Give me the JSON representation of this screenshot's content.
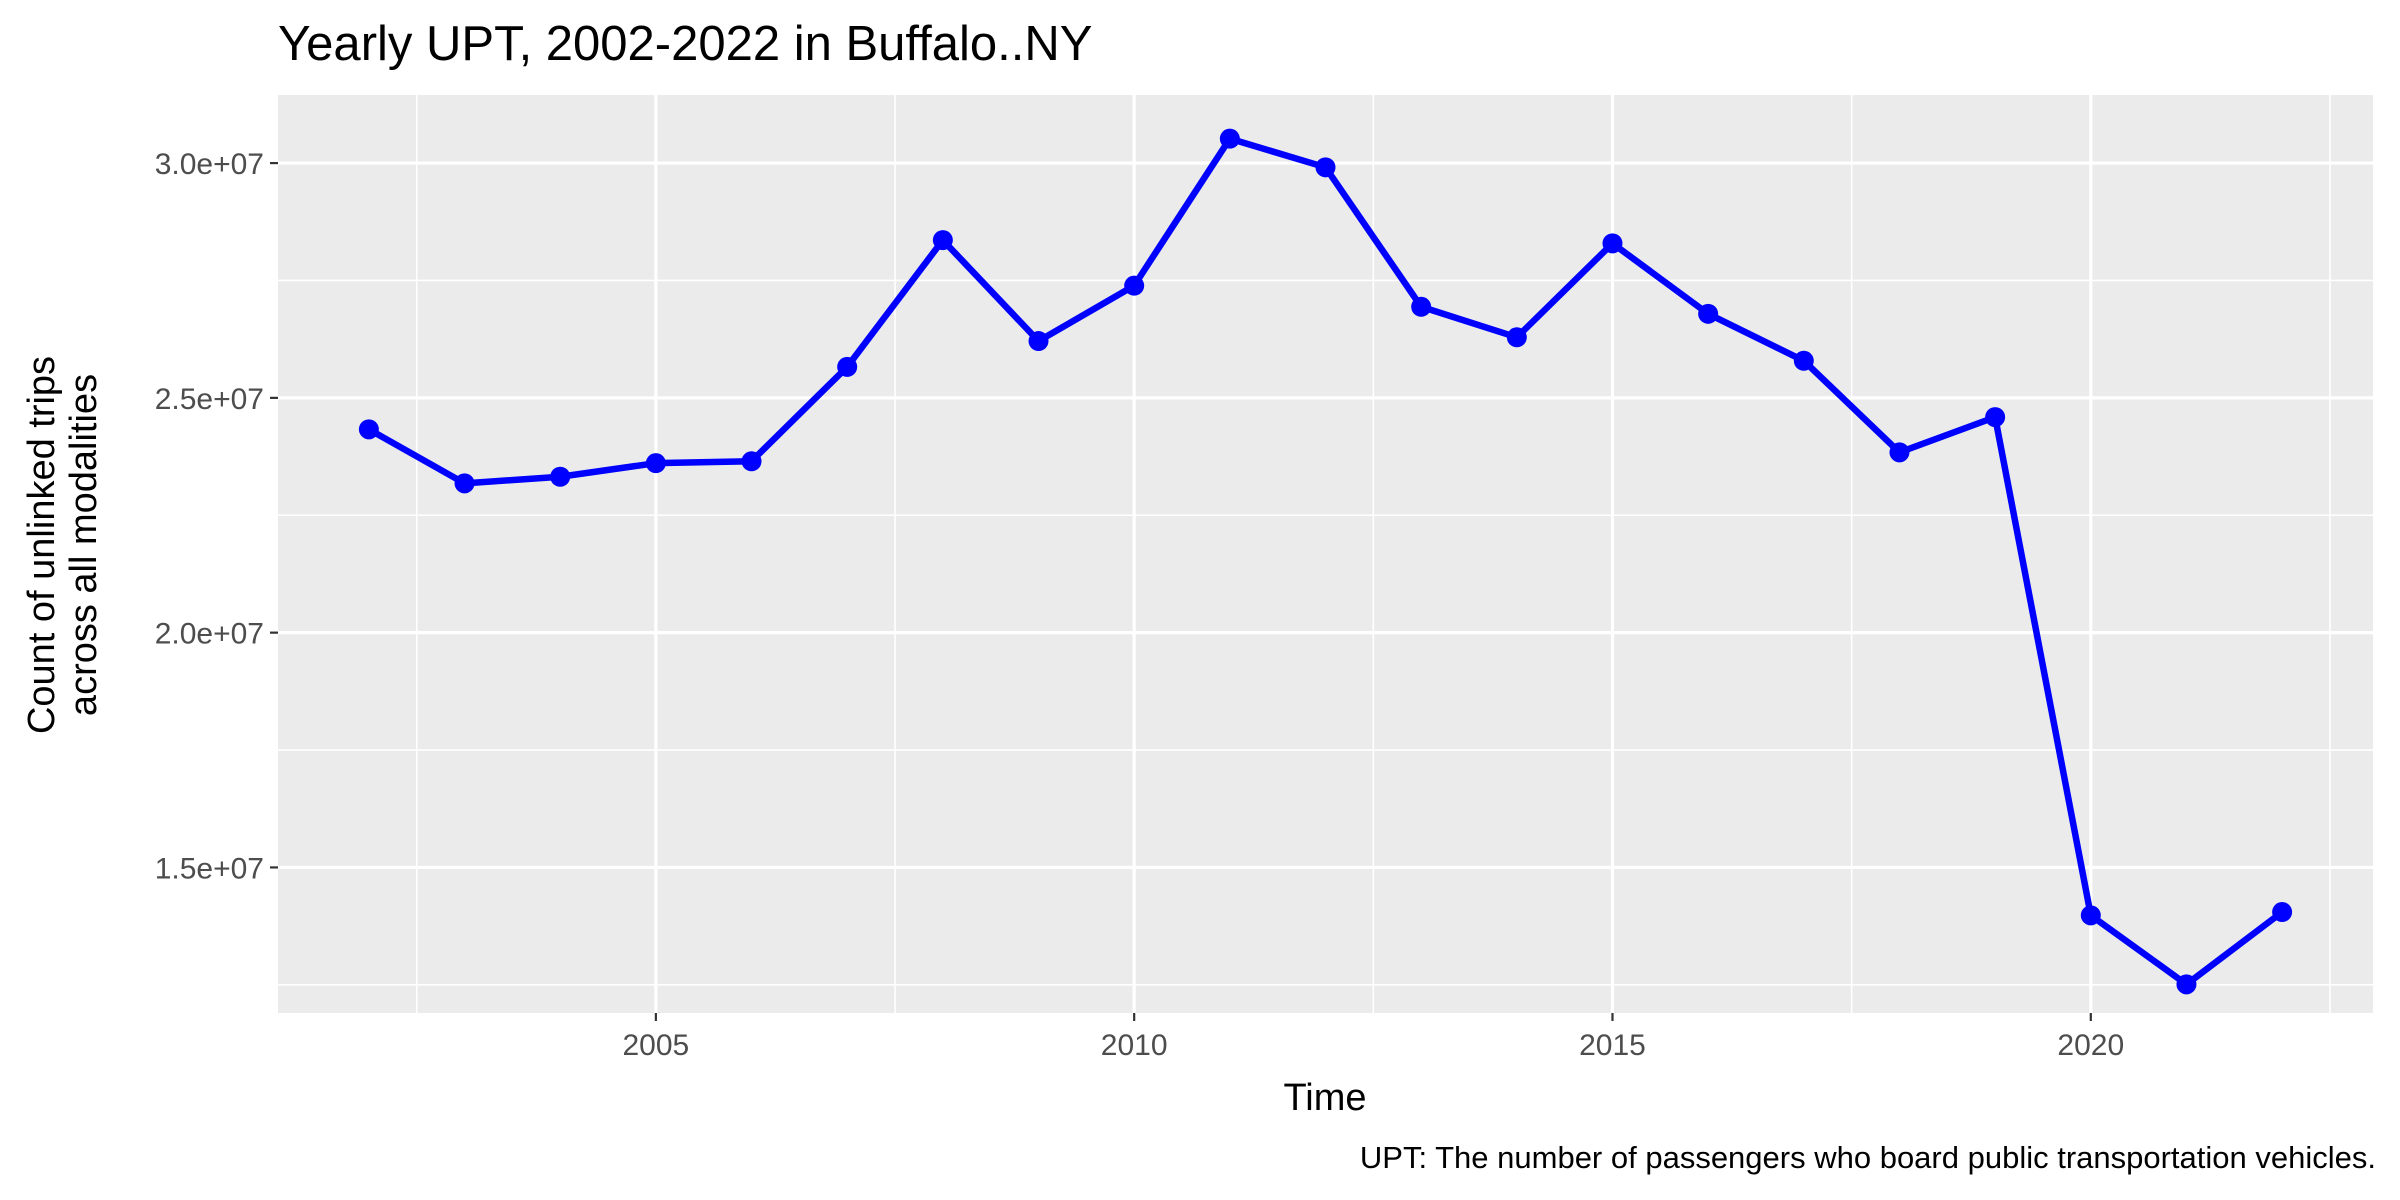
{
  "chart_data": {
    "type": "line",
    "title": "Yearly UPT, 2002-2022 in Buffalo..NY",
    "xlabel": "Time",
    "ylabel": [
      "Count of unlinked trips",
      "across all modalities"
    ],
    "caption": "UPT: The number of passengers who board public transportation vehicles.",
    "x": [
      2002,
      2003,
      2004,
      2005,
      2006,
      2007,
      2008,
      2009,
      2010,
      2011,
      2012,
      2013,
      2014,
      2015,
      2016,
      2017,
      2018,
      2019,
      2020,
      2021,
      2022
    ],
    "series": [
      {
        "color": "#0000ff",
        "values": [
          24330000,
          23180000,
          23320000,
          23610000,
          23650000,
          25660000,
          28360000,
          26210000,
          27390000,
          30520000,
          29910000,
          26940000,
          26290000,
          28290000,
          26790000,
          25790000,
          23840000,
          24590000,
          13980000,
          12510000,
          14050000
        ]
      }
    ],
    "xlim": [
      2001.05,
      2022.95
    ],
    "ylim": [
      11900000,
      31450000
    ],
    "x_ticks": [
      2005,
      2010,
      2015,
      2020
    ],
    "x_tick_labels": [
      "2005",
      "2010",
      "2015",
      "2020"
    ],
    "y_ticks": [
      15000000,
      20000000,
      25000000,
      30000000
    ],
    "y_tick_labels": [
      "1.5e+07",
      "2.0e+07",
      "2.5e+07",
      "3.0e+07"
    ],
    "grid": true,
    "panel_background": "#ebebeb",
    "grid_color": "#ffffff"
  }
}
